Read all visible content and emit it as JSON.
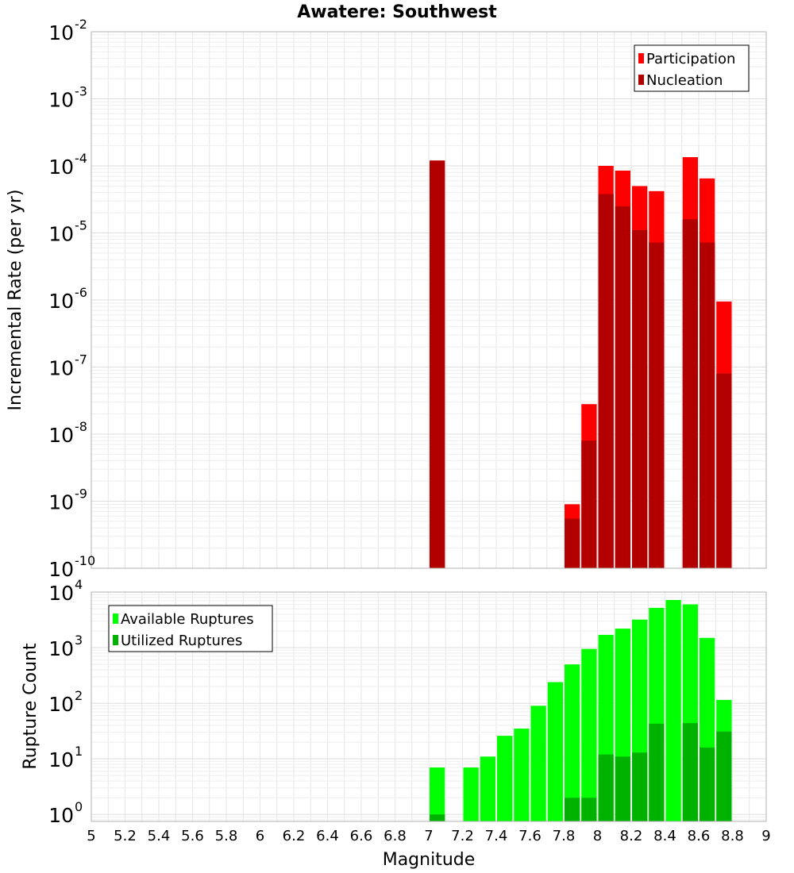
{
  "figure": {
    "title": "Awatere: Southwest",
    "xlabel": "Magnitude"
  },
  "chart_data": [
    {
      "type": "bar",
      "title": "Awatere: Southwest",
      "ylabel": "Incremental Rate (per yr)",
      "yscale": "log",
      "ylim": [
        1e-10,
        0.01
      ],
      "xlim": [
        5,
        9
      ],
      "bar_width": 0.1,
      "overlay": true,
      "grid": true,
      "legend_position": "top-right",
      "series": [
        {
          "name": "Participation",
          "color": "#ff0000",
          "points": [
            {
              "x": 7.05,
              "y": 0.00012
            },
            {
              "x": 7.85,
              "y": 9e-10
            },
            {
              "x": 7.95,
              "y": 2.8e-08
            },
            {
              "x": 8.05,
              "y": 0.0001
            },
            {
              "x": 8.15,
              "y": 8.5e-05
            },
            {
              "x": 8.25,
              "y": 5e-05
            },
            {
              "x": 8.35,
              "y": 4.2e-05
            },
            {
              "x": 8.55,
              "y": 0.000135
            },
            {
              "x": 8.65,
              "y": 6.5e-05
            },
            {
              "x": 8.75,
              "y": 9.5e-07
            }
          ]
        },
        {
          "name": "Nucleation",
          "color": "#b20000",
          "points": [
            {
              "x": 7.05,
              "y": 0.00012
            },
            {
              "x": 7.85,
              "y": 5.5e-10
            },
            {
              "x": 7.95,
              "y": 8e-09
            },
            {
              "x": 8.05,
              "y": 3.8e-05
            },
            {
              "x": 8.15,
              "y": 2.5e-05
            },
            {
              "x": 8.25,
              "y": 1.1e-05
            },
            {
              "x": 8.35,
              "y": 7.2e-06
            },
            {
              "x": 8.55,
              "y": 1.6e-05
            },
            {
              "x": 8.65,
              "y": 7.2e-06
            },
            {
              "x": 8.75,
              "y": 8e-08
            }
          ]
        }
      ],
      "ytick_labels": [
        {
          "base": "10",
          "exp": "-10",
          "value": 1e-10
        },
        {
          "base": "10",
          "exp": "-9",
          "value": 1e-09
        },
        {
          "base": "10",
          "exp": "-8",
          "value": 1e-08
        },
        {
          "base": "10",
          "exp": "-7",
          "value": 1e-07
        },
        {
          "base": "10",
          "exp": "-6",
          "value": 1e-06
        },
        {
          "base": "10",
          "exp": "-5",
          "value": 1e-05
        },
        {
          "base": "10",
          "exp": "-4",
          "value": 0.0001
        },
        {
          "base": "10",
          "exp": "-3",
          "value": 0.001
        },
        {
          "base": "10",
          "exp": "-2",
          "value": 0.01
        }
      ]
    },
    {
      "type": "bar",
      "ylabel": "Rupture Count",
      "xlabel": "Magnitude",
      "yscale": "log",
      "ylim": [
        0.75,
        10000
      ],
      "xlim": [
        5,
        9
      ],
      "bar_width": 0.1,
      "overlay": true,
      "grid": true,
      "legend_position": "top-left",
      "series": [
        {
          "name": "Available Ruptures",
          "color": "#00ff00",
          "points": [
            {
              "x": 7.05,
              "y": 7
            },
            {
              "x": 7.25,
              "y": 7
            },
            {
              "x": 7.35,
              "y": 11
            },
            {
              "x": 7.45,
              "y": 26
            },
            {
              "x": 7.55,
              "y": 35
            },
            {
              "x": 7.65,
              "y": 90
            },
            {
              "x": 7.75,
              "y": 240
            },
            {
              "x": 7.85,
              "y": 500
            },
            {
              "x": 7.95,
              "y": 950
            },
            {
              "x": 8.05,
              "y": 1700
            },
            {
              "x": 8.15,
              "y": 2200
            },
            {
              "x": 8.25,
              "y": 3200
            },
            {
              "x": 8.35,
              "y": 5200
            },
            {
              "x": 8.45,
              "y": 7200
            },
            {
              "x": 8.55,
              "y": 6000
            },
            {
              "x": 8.65,
              "y": 1500
            },
            {
              "x": 8.75,
              "y": 115
            }
          ]
        },
        {
          "name": "Utilized Ruptures",
          "color": "#00b200",
          "points": [
            {
              "x": 7.05,
              "y": 1
            },
            {
              "x": 7.85,
              "y": 2
            },
            {
              "x": 7.95,
              "y": 2
            },
            {
              "x": 8.05,
              "y": 12
            },
            {
              "x": 8.15,
              "y": 11
            },
            {
              "x": 8.25,
              "y": 13
            },
            {
              "x": 8.35,
              "y": 43
            },
            {
              "x": 8.55,
              "y": 44
            },
            {
              "x": 8.65,
              "y": 16
            },
            {
              "x": 8.75,
              "y": 31
            }
          ]
        }
      ],
      "ytick_labels": [
        {
          "base": "10",
          "exp": "0",
          "value": 1
        },
        {
          "base": "10",
          "exp": "1",
          "value": 10
        },
        {
          "base": "10",
          "exp": "2",
          "value": 100
        },
        {
          "base": "10",
          "exp": "3",
          "value": 1000
        },
        {
          "base": "10",
          "exp": "4",
          "value": 10000
        }
      ]
    }
  ],
  "xtick_labels": [
    "5",
    "5.2",
    "5.4",
    "5.6",
    "5.8",
    "6",
    "6.2",
    "6.4",
    "6.6",
    "6.8",
    "7",
    "7.2",
    "7.4",
    "7.6",
    "7.8",
    "8",
    "8.2",
    "8.4",
    "8.6",
    "8.8",
    "9"
  ]
}
